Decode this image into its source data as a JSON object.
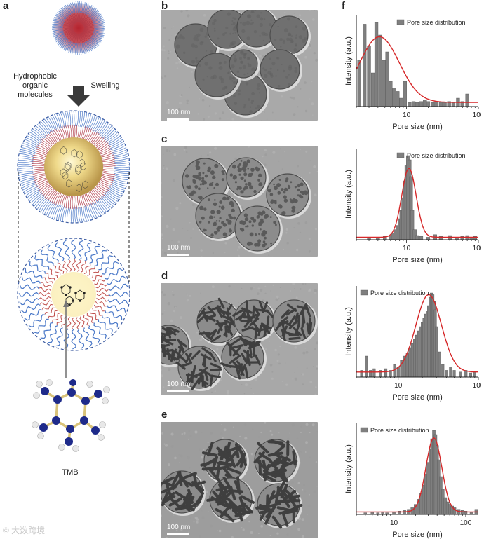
{
  "panels": {
    "a": "a",
    "b": "b",
    "c": "c",
    "d": "d",
    "e": "e",
    "f": "f"
  },
  "schematic": {
    "left_caption": [
      "Hydrophobic",
      "organic",
      "molecules"
    ],
    "right_caption": "Swelling",
    "molecule_label": "TMB"
  },
  "tem": {
    "scale_label": "100 nm"
  },
  "watermark": "© 大数跨境",
  "colors": {
    "bar": "#7f7f7f",
    "fit": "#d62728",
    "micelle_outer": "#4a78c8",
    "micelle_inner": "#c0504d",
    "core": "#f3e9a8"
  },
  "chart_data": [
    {
      "type": "bar",
      "panel": "f",
      "title": "",
      "xlabel": "Pore size (nm)",
      "ylabel": "Intensity (a.u.)",
      "xscale": "log",
      "xlim": [
        2,
        100
      ],
      "xticks": [
        10,
        100
      ],
      "legend": "Pore size distribution",
      "legend_position": "top-right",
      "series": [
        {
          "name": "Pore size distribution",
          "x": [
            2.2,
            2.6,
            3.0,
            3.4,
            3.8,
            4.3,
            4.8,
            5.4,
            6.0,
            6.7,
            7.5,
            8.4,
            9.5,
            11,
            12.5,
            14,
            16,
            18,
            20,
            23,
            26,
            30,
            34,
            39,
            45,
            52,
            60,
            70
          ],
          "values": [
            0.55,
            0.98,
            0.72,
            0.4,
            1.0,
            0.85,
            0.55,
            0.65,
            0.3,
            0.22,
            0.18,
            0.1,
            0.3,
            0.05,
            0.06,
            0.05,
            0.06,
            0.08,
            0.06,
            0.05,
            0.06,
            0.05,
            0.05,
            0.06,
            0.05,
            0.1,
            0.06,
            0.15
          ]
        }
      ],
      "fit": {
        "kind": "lognormal-plus-baseline",
        "center": 4.2,
        "width": 0.55,
        "amplitude": 0.78,
        "baseline": 0.05
      }
    },
    {
      "type": "bar",
      "panel": "c",
      "title": "",
      "xlabel": "Pore size (nm)",
      "ylabel": "Intensity (a.u.)",
      "xscale": "log",
      "xlim": [
        2,
        100
      ],
      "xticks": [
        10,
        100
      ],
      "legend": "Pore size distribution",
      "legend_position": "top-right",
      "series": [
        {
          "name": "Pore size distribution",
          "x": [
            3,
            4,
            5,
            6,
            6.5,
            7,
            7.5,
            8,
            8.5,
            9,
            9.5,
            10,
            10.5,
            11,
            11.5,
            12,
            13,
            14,
            16,
            20,
            25,
            30,
            40,
            50,
            60,
            70,
            80,
            90
          ],
          "values": [
            0.03,
            0.03,
            0.04,
            0.05,
            0.08,
            0.12,
            0.17,
            0.25,
            0.35,
            0.5,
            0.7,
            0.88,
            1.0,
            0.95,
            0.75,
            0.35,
            0.12,
            0.05,
            0.04,
            0.03,
            0.06,
            0.04,
            0.05,
            0.03,
            0.04,
            0.05,
            0.03,
            0.04
          ]
        }
      ],
      "fit": {
        "kind": "gaussian-log-plus-baseline",
        "center": 10.8,
        "width": 0.1,
        "amplitude": 0.82,
        "baseline": 0.03
      }
    },
    {
      "type": "bar",
      "panel": "d",
      "title": "",
      "xlabel": "Pore size (nm)",
      "ylabel": "Intensity (a.u.)",
      "xscale": "log",
      "xlim": [
        3,
        100
      ],
      "xticks": [
        10,
        100
      ],
      "legend": "Pore size distribution",
      "legend_position": "top-left",
      "series": [
        {
          "name": "Pore size distribution",
          "x": [
            3.5,
            4,
            4.5,
            5,
            6,
            7,
            8,
            9,
            10,
            11,
            12,
            13,
            14,
            15,
            16,
            17,
            18,
            19,
            20,
            21,
            22,
            23,
            24,
            25,
            26,
            27,
            28,
            29,
            30,
            33,
            36,
            40,
            45,
            50,
            60,
            70,
            80,
            90
          ],
          "values": [
            0.08,
            0.25,
            0.08,
            0.1,
            0.08,
            0.1,
            0.08,
            0.15,
            0.12,
            0.2,
            0.25,
            0.28,
            0.35,
            0.4,
            0.45,
            0.5,
            0.55,
            0.6,
            0.65,
            0.7,
            0.75,
            0.78,
            0.85,
            0.95,
            1.0,
            0.98,
            0.9,
            0.8,
            0.6,
            0.3,
            0.15,
            0.08,
            0.12,
            0.08,
            0.06,
            0.08,
            0.05,
            0.06
          ]
        }
      ],
      "fit": {
        "kind": "gaussian-log-plus-baseline",
        "center": 24,
        "width": 0.16,
        "amplitude": 0.92,
        "baseline": 0.06
      }
    },
    {
      "type": "bar",
      "panel": "e",
      "title": "",
      "xlabel": "Pore size (nm)",
      "ylabel": "Intensity (a.u.)",
      "xscale": "log",
      "xlim": [
        3,
        150
      ],
      "xticks": [
        10,
        100
      ],
      "legend": "Pore size distribution",
      "legend_position": "top-left",
      "series": [
        {
          "name": "Pore size distribution",
          "x": [
            4,
            5,
            6,
            7,
            8,
            10,
            12,
            14,
            16,
            18,
            20,
            22,
            24,
            26,
            28,
            30,
            32,
            34,
            36,
            38,
            40,
            42,
            45,
            48,
            52,
            56,
            60,
            65,
            70,
            80,
            90,
            100,
            120,
            140
          ],
          "values": [
            0.02,
            0.03,
            0.02,
            0.03,
            0.02,
            0.03,
            0.04,
            0.05,
            0.06,
            0.08,
            0.12,
            0.18,
            0.25,
            0.35,
            0.48,
            0.62,
            0.78,
            0.9,
            1.0,
            0.95,
            0.82,
            0.65,
            0.45,
            0.3,
            0.2,
            0.15,
            0.12,
            0.1,
            0.08,
            0.06,
            0.05,
            0.04,
            0.03,
            0.06
          ]
        }
      ],
      "fit": {
        "kind": "gaussian-log-plus-baseline",
        "center": 36,
        "width": 0.11,
        "amplitude": 0.88,
        "baseline": 0.03
      }
    }
  ]
}
